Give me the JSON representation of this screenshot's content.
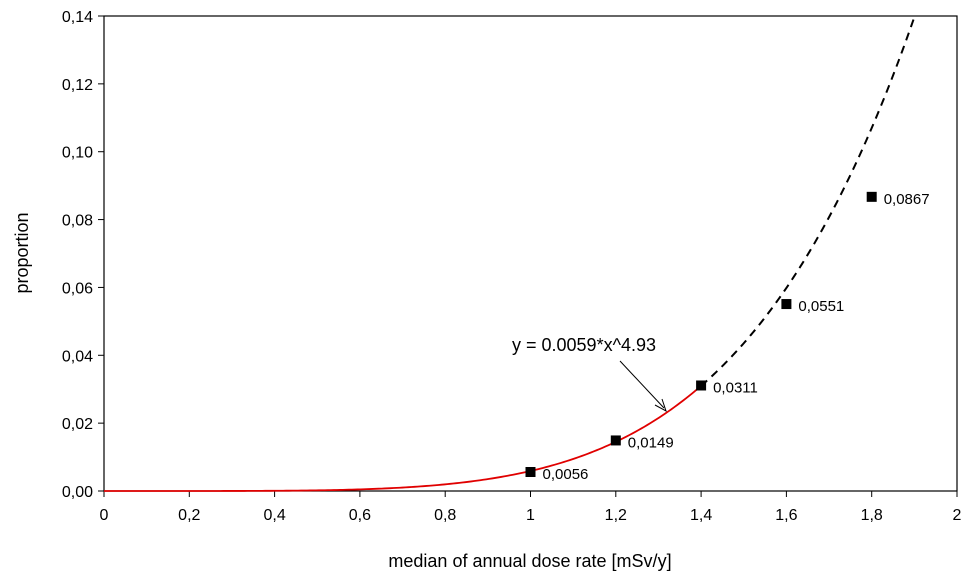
{
  "chart_data": {
    "type": "scatter",
    "xlabel": "median of annual dose rate [mSv/y]",
    "ylabel": "proportion",
    "xlim": [
      0,
      2
    ],
    "ylim": [
      0,
      0.14
    ],
    "x_ticks": [
      "0",
      "0,2",
      "0,4",
      "0,6",
      "0,8",
      "1",
      "1,2",
      "1,4",
      "1,6",
      "1,8",
      "2"
    ],
    "y_ticks": [
      "0,00",
      "0,02",
      "0,04",
      "0,06",
      "0,08",
      "0,10",
      "0,12",
      "0,14"
    ],
    "grid": false,
    "series": [
      {
        "points": [
          {
            "x": 1.0,
            "y": 0.0056,
            "label": "0,0056"
          },
          {
            "x": 1.2,
            "y": 0.0149,
            "label": "0,0149"
          },
          {
            "x": 1.4,
            "y": 0.0311,
            "label": "0,0311"
          },
          {
            "x": 1.6,
            "y": 0.0551,
            "label": "0,0551"
          },
          {
            "x": 1.8,
            "y": 0.0867,
            "label": "0,0867"
          }
        ],
        "marker": "square",
        "color": "#000000"
      }
    ],
    "fit": {
      "equation": "y = 0.0059*x^4.93",
      "coefficient": 0.0059,
      "exponent": 4.93,
      "solid_range": [
        0,
        1.4
      ],
      "solid_color": "#e00000",
      "dashed_range": [
        1.4,
        2
      ],
      "dashed_color": "#000000"
    }
  }
}
